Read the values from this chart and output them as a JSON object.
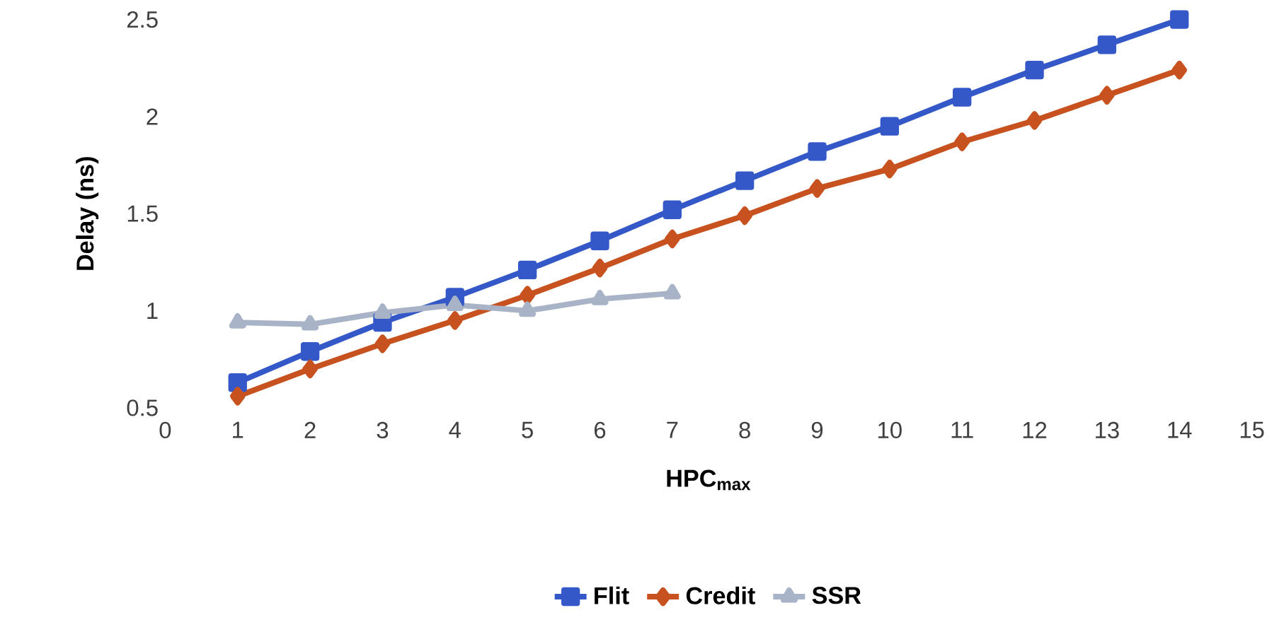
{
  "chart_data": {
    "type": "line",
    "xlabel": "HPC$_{max}$",
    "ylabel": "Delay (ns)",
    "x": [
      1,
      2,
      3,
      4,
      5,
      6,
      7,
      8,
      9,
      10,
      11,
      12,
      13,
      14
    ],
    "series": [
      {
        "name": "Flit",
        "color": "#3558c8",
        "marker": "square",
        "values": [
          0.63,
          0.79,
          0.94,
          1.07,
          1.21,
          1.36,
          1.52,
          1.67,
          1.82,
          1.95,
          2.1,
          2.24,
          2.37,
          2.5
        ]
      },
      {
        "name": "Credit",
        "color": "#c8521f",
        "marker": "diamond",
        "values": [
          0.56,
          0.7,
          0.83,
          0.95,
          1.08,
          1.22,
          1.37,
          1.49,
          1.63,
          1.73,
          1.87,
          1.98,
          2.11,
          2.24
        ]
      },
      {
        "name": "SSR",
        "color": "#a9b3c7",
        "marker": "triangle",
        "values": [
          0.94,
          0.93,
          0.99,
          1.03,
          1.0,
          1.06,
          1.09,
          null,
          null,
          null,
          null,
          null,
          null,
          null
        ]
      }
    ],
    "xlim": [
      0,
      15
    ],
    "xticks": [
      0,
      1,
      2,
      3,
      4,
      5,
      6,
      7,
      8,
      9,
      10,
      11,
      12,
      13,
      14,
      15
    ],
    "ylim": [
      0.5,
      2.5
    ],
    "yticks": [
      0.5,
      1,
      1.5,
      2,
      2.5
    ],
    "grid": false,
    "legend": "bottom"
  }
}
